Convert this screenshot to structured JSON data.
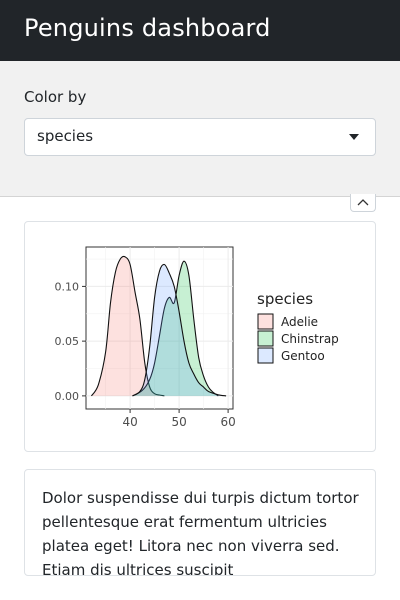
{
  "header": {
    "title": "Penguins dashboard"
  },
  "sidebar": {
    "color_label": "Color by",
    "select": {
      "value": "species",
      "options": [
        "species"
      ]
    }
  },
  "plot": {
    "chart_data": {
      "type": "area",
      "xlabel": "",
      "ylabel": "",
      "xlim": [
        31,
        61
      ],
      "ylim": [
        -0.012,
        0.136
      ],
      "x_ticks": [
        40,
        50,
        60
      ],
      "y_ticks": [
        0.0,
        0.05,
        0.1
      ],
      "x_tick_labels": [
        "40",
        "50",
        "60"
      ],
      "y_tick_labels": [
        "0.00",
        "0.05",
        "0.10"
      ],
      "grid": true,
      "legend": {
        "title": "species",
        "position": "right"
      },
      "series": [
        {
          "name": "Adelie",
          "color": "#F8766D",
          "x": [
            32.1,
            33.5,
            35.0,
            36.0,
            37.0,
            38.0,
            39.0,
            40.0,
            41.0,
            42.0,
            43.0,
            44.0,
            45.0,
            46.0,
            47.0
          ],
          "y": [
            0.0,
            0.01,
            0.04,
            0.085,
            0.113,
            0.125,
            0.127,
            0.12,
            0.095,
            0.07,
            0.03,
            0.008,
            0.002,
            0.0008,
            0.0
          ]
        },
        {
          "name": "Chinstrap",
          "color": "#00BA38",
          "x": [
            40.5,
            42.5,
            44.0,
            45.0,
            46.0,
            47.0,
            48.0,
            49.0,
            50.0,
            51.0,
            52.0,
            53.0,
            54.0,
            55.0,
            56.0,
            57.0,
            58.0
          ],
          "y": [
            0.0,
            0.005,
            0.015,
            0.03,
            0.055,
            0.08,
            0.09,
            0.085,
            0.11,
            0.123,
            0.11,
            0.07,
            0.035,
            0.018,
            0.008,
            0.003,
            0.0
          ]
        },
        {
          "name": "Gentoo",
          "color": "#619CFF",
          "x": [
            40.5,
            42.0,
            43.0,
            44.0,
            45.0,
            46.0,
            47.0,
            48.0,
            49.0,
            50.0,
            51.0,
            52.0,
            53.0,
            54.0,
            55.0,
            56.0,
            58.0,
            59.6
          ],
          "y": [
            0.0,
            0.004,
            0.015,
            0.045,
            0.09,
            0.114,
            0.12,
            0.112,
            0.1,
            0.077,
            0.05,
            0.03,
            0.02,
            0.012,
            0.008,
            0.004,
            0.001,
            0.0
          ]
        }
      ]
    }
  },
  "text_card": {
    "body": "Dolor suspendisse dui turpis dictum tortor pellentesque erat fermentum ultricies platea eget! Litora nec non viverra sed. Etiam dis ultrices suscipit"
  },
  "icons": {
    "select_caret": "caret-down-icon",
    "collapse": "chevron-up-icon"
  },
  "colors": {
    "navbar": "#212529",
    "sidebar": "#f1f1f1"
  }
}
